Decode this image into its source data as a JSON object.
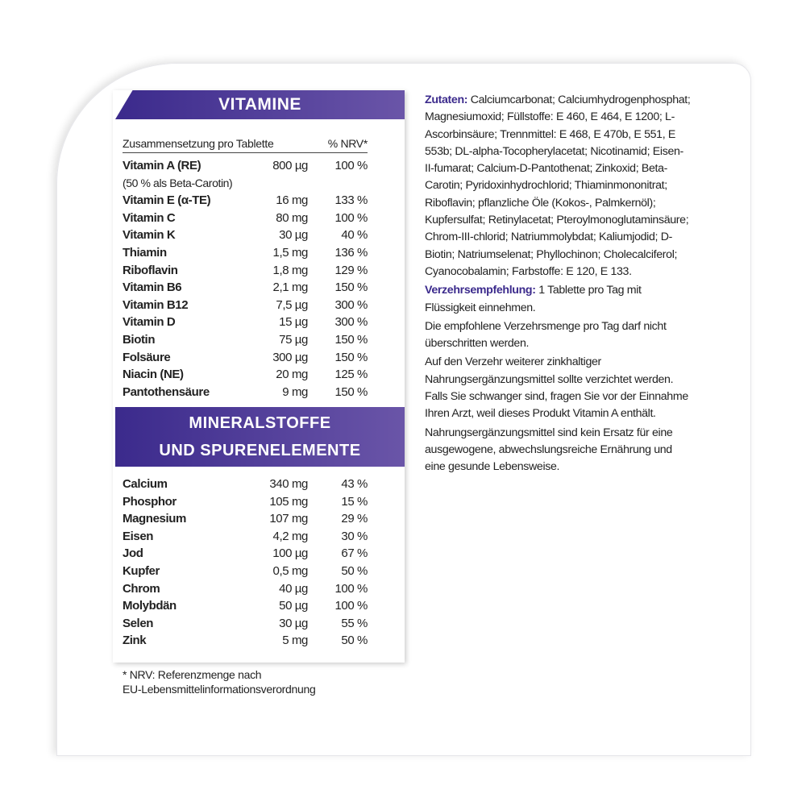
{
  "vitamine": {
    "title": "VITAMINE",
    "col_composition": "Zusammensetzung pro Tablette",
    "col_nrv": "% NRV*",
    "rows": [
      {
        "name": "Vitamin A (RE)",
        "amount": "800 µg",
        "nrv": "100 %",
        "note": "(50 % als Beta-Carotin)"
      },
      {
        "name": "Vitamin E (α-TE)",
        "amount": "16 mg",
        "nrv": "133 %"
      },
      {
        "name": "Vitamin C",
        "amount": "80 mg",
        "nrv": "100 %"
      },
      {
        "name": "Vitamin K",
        "amount": "30 µg",
        "nrv": "40 %"
      },
      {
        "name": "Thiamin",
        "amount": "1,5 mg",
        "nrv": "136 %"
      },
      {
        "name": "Riboflavin",
        "amount": "1,8 mg",
        "nrv": "129 %"
      },
      {
        "name": "Vitamin B6",
        "amount": "2,1 mg",
        "nrv": "150 %"
      },
      {
        "name": "Vitamin B12",
        "amount": "7,5 µg",
        "nrv": "300 %"
      },
      {
        "name": "Vitamin D",
        "amount": "15 µg",
        "nrv": "300 %"
      },
      {
        "name": "Biotin",
        "amount": "75 µg",
        "nrv": "150 %"
      },
      {
        "name": "Folsäure",
        "amount": "300 µg",
        "nrv": "150 %"
      },
      {
        "name": "Niacin (NE)",
        "amount": "20 mg",
        "nrv": "125 %"
      },
      {
        "name": "Pantothensäure",
        "amount": "9 mg",
        "nrv": "150 %"
      }
    ]
  },
  "minerals": {
    "title_line1": "MINERALSTOFFE",
    "title_line2": "UND SPURENELEMENTE",
    "rows": [
      {
        "name": "Calcium",
        "amount": "340 mg",
        "nrv": "43 %"
      },
      {
        "name": "Phosphor",
        "amount": "105 mg",
        "nrv": "15 %"
      },
      {
        "name": "Magnesium",
        "amount": "107 mg",
        "nrv": "29 %"
      },
      {
        "name": "Eisen",
        "amount": "4,2 mg",
        "nrv": "30 %"
      },
      {
        "name": "Jod",
        "amount": "100 µg",
        "nrv": "67 %"
      },
      {
        "name": "Kupfer",
        "amount": "0,5 mg",
        "nrv": "50 %"
      },
      {
        "name": "Chrom",
        "amount": "40 µg",
        "nrv": "100 %"
      },
      {
        "name": "Molybdän",
        "amount": "50 µg",
        "nrv": "100 %"
      },
      {
        "name": "Selen",
        "amount": "30 µg",
        "nrv": "55 %"
      },
      {
        "name": "Zink",
        "amount": "5 mg",
        "nrv": "50 %"
      }
    ]
  },
  "footnote": {
    "line1": "* NRV: Referenzmenge nach",
    "line2": "EU-Lebensmittelinformationsverordnung"
  },
  "right": {
    "ingredients_label": "Zutaten:",
    "ingredients": "Calciumcarbonat; Calciumhydrogenphosphat; Magnesiumoxid; Füllstoffe: E 460, E 464, E 1200; L-Ascorbinsäure; Trennmittel: E 468, E 470b, E 551, E 553b; DL-alpha-Tocopherylacetat; Nicotinamid; Eisen-II-fumarat; Calcium-D-Pantothenat; Zinkoxid; Beta-Carotin; Pyridoxinhydrochlorid; Thiaminmononitrat; Riboflavin; pflanzliche Öle (Kokos-, Palmkernöl); Kupfersulfat; Retinylacetat; Pteroylmonoglutaminsäure; Chrom-III-chlorid; Natriummolybdat; Kaliumjodid; D-Biotin; Natriumselenat; Phyllochinon; Cholecalciferol; Cyanocobalamin; Farbstoffe: E 120, E 133.",
    "dosage_label": "Verzehrsempfehlung:",
    "dosage": "1 Tablette pro Tag mit Flüssigkeit einnehmen.",
    "warning1": "Die empfohlene Verzehrsmenge pro Tag darf nicht überschritten werden.",
    "warning2": "Auf den Verzehr weiterer zinkhaltiger Nahrungsergänzungsmittel sollte verzichtet werden. Falls Sie schwanger sind, fragen Sie vor der Einnahme Ihren Arzt, weil dieses Produkt Vitamin A enthält.",
    "warning3": "Nahrungsergänzungsmittel sind kein Ersatz für eine ausgewogene, abwechslungsreiche Ernährung und eine gesunde Lebensweise."
  }
}
